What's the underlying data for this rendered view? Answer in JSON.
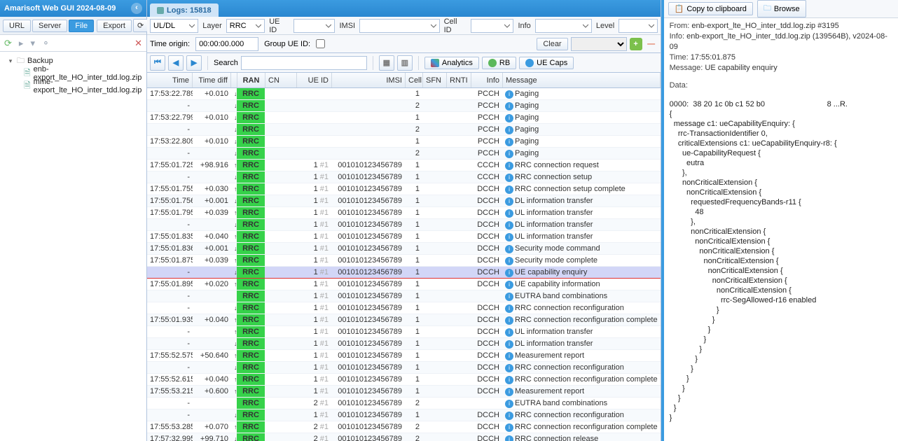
{
  "header": {
    "title": "Amarisoft Web GUI 2024-08-09"
  },
  "left": {
    "btnUrl": "URL",
    "btnServer": "Server",
    "btnFile": "File",
    "btnExport": "Export",
    "treeRoot": "Backup",
    "file1": "enb-export_lte_HO_inter_tdd.log.zip",
    "file2": "mme-export_lte_HO_inter_tdd.log.zip"
  },
  "tab": {
    "label": "Logs: 15818"
  },
  "filters": {
    "ulLabel": "UL/DL",
    "layerLabel": "Layer",
    "layerVal": "RRC",
    "ueLabel": "UE ID",
    "imsiLabel": "IMSI",
    "cellLabel": "Cell ID",
    "infoLabel": "Info",
    "levelLabel": "Level",
    "originLabel": "Time origin:",
    "originVal": "00:00:00.000",
    "groupLabel": "Group UE ID:",
    "clearLabel": "Clear",
    "searchLabel": "Search",
    "analytics": "Analytics",
    "rb": "RB",
    "uecaps": "UE Caps"
  },
  "cols": {
    "time": "Time",
    "diff": "Time diff",
    "ran": "RAN",
    "cn": "CN",
    "ueid": "UE ID",
    "imsi": "IMSI",
    "cell": "Cell",
    "sfn": "SFN",
    "rnti": "RNTI",
    "info": "Info",
    "msg": "Message"
  },
  "rows": [
    {
      "t": "17:53:22.789",
      "d": "+0.010",
      "ud": "↓",
      "ue": "",
      "im": "",
      "c": "1",
      "i": "PCCH",
      "m": "Paging"
    },
    {
      "t": "-",
      "d": "",
      "ud": "↓",
      "ue": "",
      "im": "",
      "c": "2",
      "i": "PCCH",
      "m": "Paging"
    },
    {
      "t": "17:53:22.799",
      "d": "+0.010",
      "ud": "↓",
      "ue": "",
      "im": "",
      "c": "1",
      "i": "PCCH",
      "m": "Paging"
    },
    {
      "t": "-",
      "d": "",
      "ud": "↓",
      "ue": "",
      "im": "",
      "c": "2",
      "i": "PCCH",
      "m": "Paging"
    },
    {
      "t": "17:53:22.809",
      "d": "+0.010",
      "ud": "↓",
      "ue": "",
      "im": "",
      "c": "1",
      "i": "PCCH",
      "m": "Paging"
    },
    {
      "t": "-",
      "d": "",
      "ud": "↓",
      "ue": "",
      "im": "",
      "c": "2",
      "i": "PCCH",
      "m": "Paging"
    },
    {
      "t": "17:55:01.725",
      "d": "+98.916",
      "ud": "↑",
      "ue": "1",
      "ex": "#1",
      "im": "001010123456789",
      "c": "1",
      "i": "CCCH",
      "m": "RRC connection request"
    },
    {
      "t": "-",
      "d": "",
      "ud": "↓",
      "ue": "1",
      "ex": "#1",
      "im": "001010123456789",
      "c": "1",
      "i": "CCCH",
      "m": "RRC connection setup"
    },
    {
      "t": "17:55:01.755",
      "d": "+0.030",
      "ud": "↑",
      "ue": "1",
      "ex": "#1",
      "im": "001010123456789",
      "c": "1",
      "i": "DCCH",
      "m": "RRC connection setup complete"
    },
    {
      "t": "17:55:01.756",
      "d": "+0.001",
      "ud": "↓",
      "ue": "1",
      "ex": "#1",
      "im": "001010123456789",
      "c": "1",
      "i": "DCCH",
      "m": "DL information transfer"
    },
    {
      "t": "17:55:01.795",
      "d": "+0.039",
      "ud": "↑",
      "ue": "1",
      "ex": "#1",
      "im": "001010123456789",
      "c": "1",
      "i": "DCCH",
      "m": "UL information transfer"
    },
    {
      "t": "-",
      "d": "",
      "ud": "↓",
      "ue": "1",
      "ex": "#1",
      "im": "001010123456789",
      "c": "1",
      "i": "DCCH",
      "m": "DL information transfer"
    },
    {
      "t": "17:55:01.835",
      "d": "+0.040",
      "ud": "↑",
      "ue": "1",
      "ex": "#1",
      "im": "001010123456789",
      "c": "1",
      "i": "DCCH",
      "m": "UL information transfer"
    },
    {
      "t": "17:55:01.836",
      "d": "+0.001",
      "ud": "↓",
      "ue": "1",
      "ex": "#1",
      "im": "001010123456789",
      "c": "1",
      "i": "DCCH",
      "m": "Security mode command"
    },
    {
      "t": "17:55:01.875",
      "d": "+0.039",
      "ud": "↑",
      "ue": "1",
      "ex": "#1",
      "im": "001010123456789",
      "c": "1",
      "i": "DCCH",
      "m": "Security mode complete"
    },
    {
      "t": "-",
      "d": "",
      "ud": "↓",
      "ue": "1",
      "ex": "#1",
      "im": "001010123456789",
      "c": "1",
      "i": "DCCH",
      "m": "UE capability enquiry",
      "sel": true
    },
    {
      "t": "17:55:01.895",
      "d": "+0.020",
      "ud": "↑",
      "ue": "1",
      "ex": "#1",
      "im": "001010123456789",
      "c": "1",
      "i": "DCCH",
      "m": "UE capability information"
    },
    {
      "t": "-",
      "d": "",
      "ud": "",
      "ue": "1",
      "ex": "#1",
      "im": "001010123456789",
      "c": "1",
      "i": "",
      "m": "EUTRA band combinations"
    },
    {
      "t": "-",
      "d": "",
      "ud": "↓",
      "ue": "1",
      "ex": "#1",
      "im": "001010123456789",
      "c": "1",
      "i": "DCCH",
      "m": "RRC connection reconfiguration"
    },
    {
      "t": "17:55:01.935",
      "d": "+0.040",
      "ud": "↑",
      "ue": "1",
      "ex": "#1",
      "im": "001010123456789",
      "c": "1",
      "i": "DCCH",
      "m": "RRC connection reconfiguration complete"
    },
    {
      "t": "-",
      "d": "",
      "ud": "↑",
      "ue": "1",
      "ex": "#1",
      "im": "001010123456789",
      "c": "1",
      "i": "DCCH",
      "m": "UL information transfer"
    },
    {
      "t": "-",
      "d": "",
      "ud": "↓",
      "ue": "1",
      "ex": "#1",
      "im": "001010123456789",
      "c": "1",
      "i": "DCCH",
      "m": "DL information transfer"
    },
    {
      "t": "17:55:52.575",
      "d": "+50.640",
      "ud": "↑",
      "ue": "1",
      "ex": "#1",
      "im": "001010123456789",
      "c": "1",
      "i": "DCCH",
      "m": "Measurement report"
    },
    {
      "t": "-",
      "d": "",
      "ud": "↓",
      "ue": "1",
      "ex": "#1",
      "im": "001010123456789",
      "c": "1",
      "i": "DCCH",
      "m": "RRC connection reconfiguration"
    },
    {
      "t": "17:55:52.615",
      "d": "+0.040",
      "ud": "↑",
      "ue": "1",
      "ex": "#1",
      "im": "001010123456789",
      "c": "1",
      "i": "DCCH",
      "m": "RRC connection reconfiguration complete"
    },
    {
      "t": "17:55:53.215",
      "d": "+0.600",
      "ud": "↑",
      "ue": "1",
      "ex": "#1",
      "im": "001010123456789",
      "c": "1",
      "i": "DCCH",
      "m": "Measurement report"
    },
    {
      "t": "-",
      "d": "",
      "ud": "",
      "ue": "2",
      "ex": "#1",
      "im": "001010123456789",
      "c": "2",
      "i": "",
      "m": "EUTRA band combinations"
    },
    {
      "t": "-",
      "d": "",
      "ud": "↓",
      "ue": "1",
      "ex": "#1",
      "im": "001010123456789",
      "c": "1",
      "i": "DCCH",
      "m": "RRC connection reconfiguration"
    },
    {
      "t": "17:55:53.285",
      "d": "+0.070",
      "ud": "↑",
      "ue": "2",
      "ex": "#1",
      "im": "001010123456789",
      "c": "2",
      "i": "DCCH",
      "m": "RRC connection reconfiguration complete"
    },
    {
      "t": "17:57:32.995",
      "d": "+99.710",
      "ud": "↓",
      "ue": "2",
      "ex": "#1",
      "im": "001010123456789",
      "c": "2",
      "i": "DCCH",
      "m": "RRC connection release"
    }
  ],
  "right": {
    "copy": "Copy to clipboard",
    "browse": "Browse",
    "fromL": "From:",
    "fromV": "enb-export_lte_HO_inter_tdd.log.zip #3195",
    "infoL": "Info:",
    "infoV": "enb-export_lte_HO_inter_tdd.log.zip (139564B), v2024-08-09",
    "timeL": "Time:",
    "timeV": "17:55:01.875",
    "msgL": "Message:",
    "msgV": "UE capability enquiry",
    "dataL": "Data:",
    "hex": "0000:  38 20 1c 0b c1 52 b0                             8 ...R.",
    "tree": "{\n  message c1: ueCapabilityEnquiry: {\n    rrc-TransactionIdentifier 0,\n    criticalExtensions c1: ueCapabilityEnquiry-r8: {\n      ue-CapabilityRequest {\n        eutra\n      },\n      nonCriticalExtension {\n        nonCriticalExtension {\n          requestedFrequencyBands-r11 {\n            48\n          },\n          nonCriticalExtension {\n            nonCriticalExtension {\n              nonCriticalExtension {\n                nonCriticalExtension {\n                  nonCriticalExtension {\n                    nonCriticalExtension {\n                      nonCriticalExtension {\n                        rrc-SegAllowed-r16 enabled\n                      }\n                    }\n                  }\n                }\n              }\n            }\n          }\n        }\n      }\n    }\n  }\n}"
  }
}
